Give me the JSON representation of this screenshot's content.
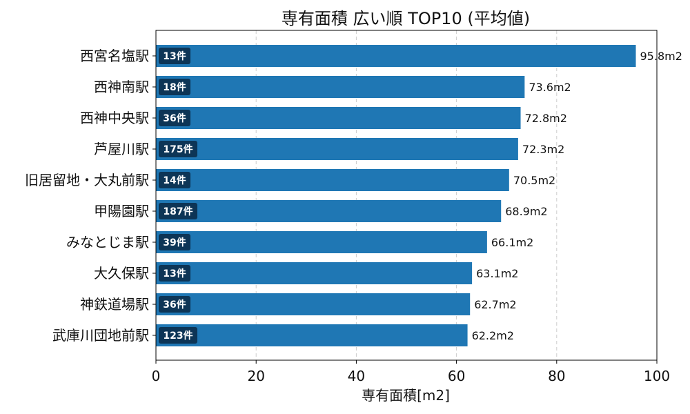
{
  "chart_data": {
    "type": "bar",
    "orientation": "horizontal",
    "title": "専有面積 広い順 TOP10 (平均値)",
    "xlabel": "専有面積[m2]",
    "ylabel": "",
    "xlim": [
      0,
      100
    ],
    "xticks": [
      0,
      20,
      40,
      60,
      80,
      100
    ],
    "grid": "x-dashed",
    "categories": [
      "西宮名塩駅",
      "西神南駅",
      "西神中央駅",
      "芦屋川駅",
      "旧居留地・大丸前駅",
      "甲陽園駅",
      "みなとじま駅",
      "大久保駅",
      "神鉄道場駅",
      "武庫川団地前駅"
    ],
    "values": [
      95.8,
      73.6,
      72.8,
      72.3,
      70.5,
      68.9,
      66.1,
      63.1,
      62.7,
      62.2
    ],
    "value_labels": [
      "95.8m2",
      "73.6m2",
      "72.8m2",
      "72.3m2",
      "70.5m2",
      "68.9m2",
      "66.1m2",
      "63.1m2",
      "62.7m2",
      "62.2m2"
    ],
    "counts": [
      "13件",
      "18件",
      "36件",
      "175件",
      "14件",
      "187件",
      "39件",
      "13件",
      "36件",
      "123件"
    ],
    "colors": {
      "bar": "#1f77b4",
      "badge": "#0d3556",
      "grid": "#cccccc"
    }
  }
}
